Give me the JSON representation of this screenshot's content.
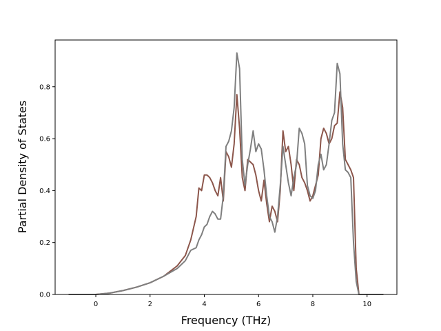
{
  "chart_data": {
    "type": "line",
    "title": "",
    "xlabel": "Frequency (THz)",
    "ylabel": "Partial Density of States",
    "xlim": [
      -1.5,
      11.1
    ],
    "ylim": [
      0.0,
      0.98
    ],
    "xticks": [
      0,
      2,
      4,
      6,
      8,
      10
    ],
    "yticks": [
      0.0,
      0.2,
      0.4,
      0.6,
      0.8
    ],
    "xtick_labels": [
      "0",
      "2",
      "4",
      "6",
      "8",
      "10"
    ],
    "ytick_labels": [
      "0.0",
      "0.2",
      "0.4",
      "0.6",
      "0.8"
    ],
    "grid": false,
    "legend": "none",
    "series": [
      {
        "color": "#8c564b",
        "x": [
          -1.0,
          0.0,
          0.5,
          1.0,
          1.5,
          2.0,
          2.5,
          3.0,
          3.3,
          3.5,
          3.7,
          3.8,
          3.9,
          4.0,
          4.1,
          4.2,
          4.3,
          4.4,
          4.5,
          4.6,
          4.7,
          4.8,
          4.9,
          5.0,
          5.1,
          5.2,
          5.3,
          5.4,
          5.5,
          5.6,
          5.7,
          5.8,
          5.9,
          6.0,
          6.1,
          6.2,
          6.3,
          6.4,
          6.5,
          6.6,
          6.7,
          6.8,
          6.9,
          7.0,
          7.1,
          7.2,
          7.3,
          7.4,
          7.5,
          7.6,
          7.7,
          7.8,
          7.9,
          8.0,
          8.1,
          8.2,
          8.3,
          8.4,
          8.5,
          8.6,
          8.7,
          8.8,
          8.9,
          9.0,
          9.1,
          9.2,
          9.3,
          9.4,
          9.5,
          9.6,
          9.7,
          10.6
        ],
        "y": [
          0.0,
          0.0,
          0.005,
          0.015,
          0.028,
          0.045,
          0.07,
          0.11,
          0.15,
          0.21,
          0.3,
          0.41,
          0.4,
          0.46,
          0.46,
          0.45,
          0.43,
          0.4,
          0.38,
          0.45,
          0.36,
          0.55,
          0.53,
          0.49,
          0.58,
          0.77,
          0.64,
          0.45,
          0.4,
          0.52,
          0.51,
          0.5,
          0.46,
          0.4,
          0.36,
          0.44,
          0.35,
          0.28,
          0.34,
          0.32,
          0.28,
          0.4,
          0.63,
          0.55,
          0.57,
          0.5,
          0.4,
          0.52,
          0.5,
          0.45,
          0.43,
          0.4,
          0.36,
          0.38,
          0.42,
          0.46,
          0.6,
          0.64,
          0.62,
          0.58,
          0.6,
          0.65,
          0.66,
          0.78,
          0.72,
          0.52,
          0.5,
          0.48,
          0.45,
          0.1,
          0.0,
          0.0
        ]
      },
      {
        "color": "#7f7f7f",
        "x": [
          -1.0,
          0.0,
          0.5,
          1.0,
          1.5,
          2.0,
          2.5,
          3.0,
          3.3,
          3.5,
          3.7,
          3.8,
          3.9,
          4.0,
          4.1,
          4.2,
          4.3,
          4.4,
          4.5,
          4.6,
          4.7,
          4.8,
          4.9,
          5.0,
          5.1,
          5.2,
          5.3,
          5.4,
          5.5,
          5.6,
          5.7,
          5.8,
          5.9,
          6.0,
          6.1,
          6.2,
          6.3,
          6.4,
          6.5,
          6.6,
          6.7,
          6.8,
          6.9,
          7.0,
          7.1,
          7.2,
          7.3,
          7.4,
          7.5,
          7.6,
          7.7,
          7.8,
          7.9,
          8.0,
          8.1,
          8.2,
          8.3,
          8.4,
          8.5,
          8.6,
          8.7,
          8.8,
          8.9,
          9.0,
          9.1,
          9.2,
          9.3,
          9.4,
          9.5,
          9.6,
          9.7,
          10.6
        ],
        "y": [
          0.0,
          0.0,
          0.005,
          0.015,
          0.028,
          0.045,
          0.07,
          0.1,
          0.13,
          0.17,
          0.18,
          0.21,
          0.23,
          0.26,
          0.27,
          0.3,
          0.32,
          0.31,
          0.29,
          0.29,
          0.38,
          0.57,
          0.59,
          0.63,
          0.72,
          0.93,
          0.87,
          0.52,
          0.42,
          0.5,
          0.56,
          0.63,
          0.55,
          0.58,
          0.56,
          0.48,
          0.38,
          0.3,
          0.28,
          0.24,
          0.3,
          0.42,
          0.57,
          0.5,
          0.43,
          0.38,
          0.45,
          0.5,
          0.64,
          0.62,
          0.58,
          0.42,
          0.38,
          0.37,
          0.4,
          0.5,
          0.54,
          0.48,
          0.5,
          0.58,
          0.67,
          0.7,
          0.89,
          0.85,
          0.58,
          0.48,
          0.47,
          0.45,
          0.2,
          0.05,
          0.0,
          0.0
        ]
      }
    ]
  }
}
